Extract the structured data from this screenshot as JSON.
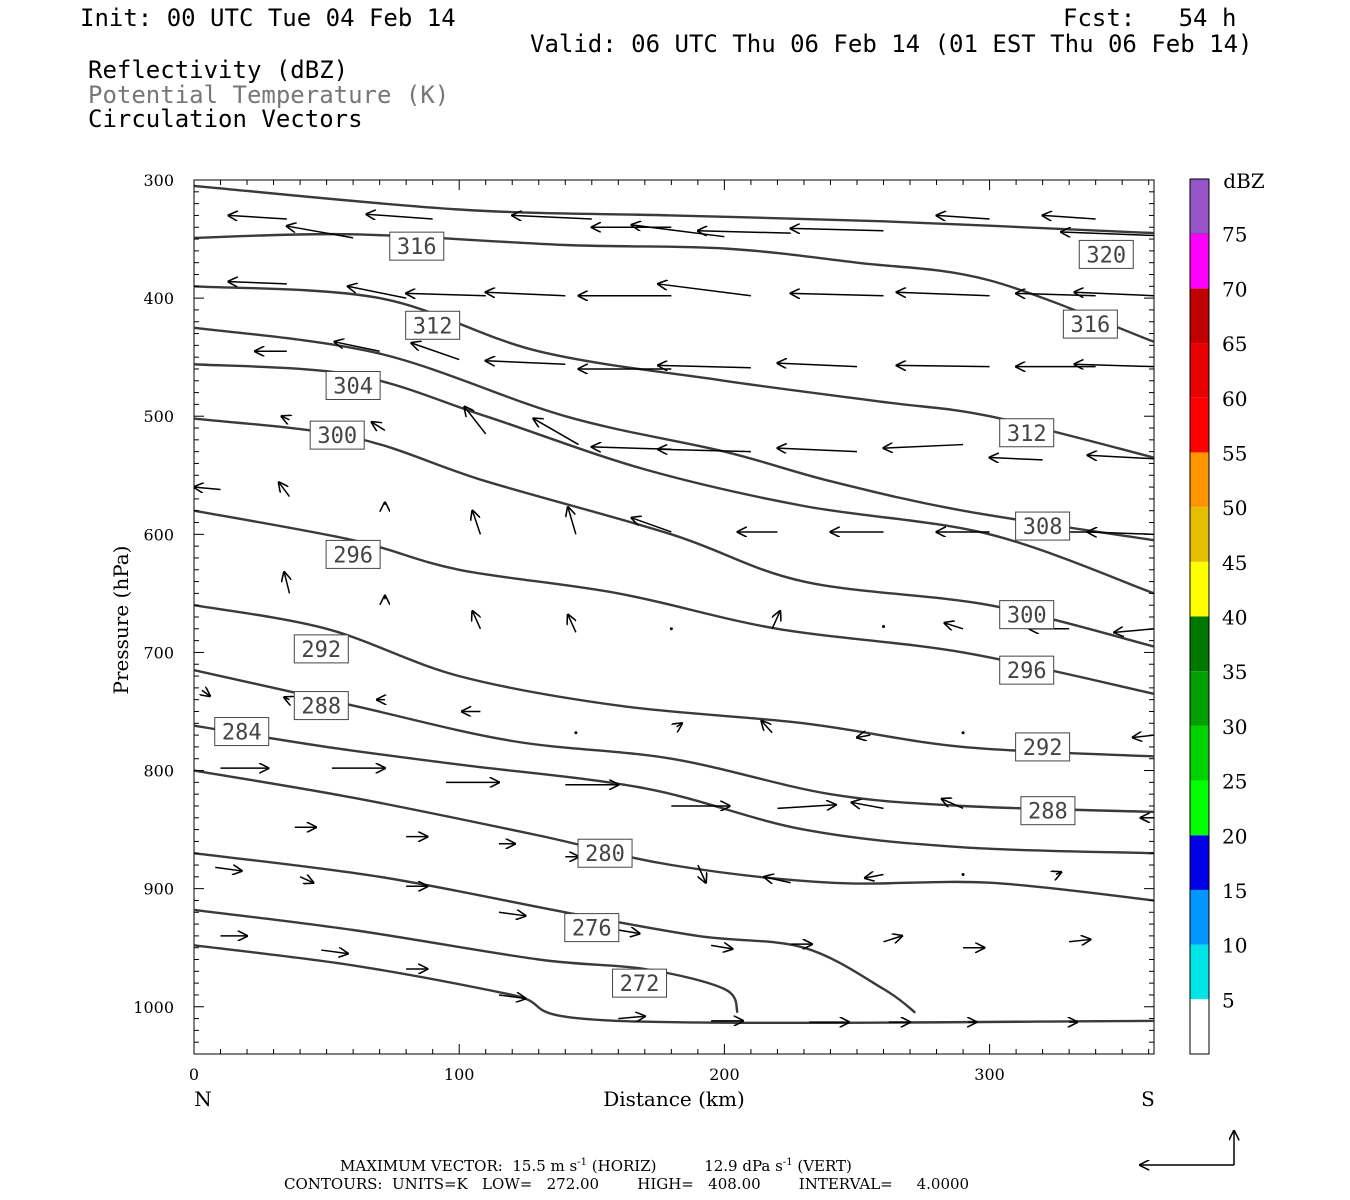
{
  "header": {
    "init": "Init: 00 UTC Tue 04 Feb 14",
    "fcst": "Fcst:   54 h",
    "valid": "Valid: 06 UTC Thu 06 Feb 14 (01 EST Thu 06 Feb 14)",
    "field1": "Reflectivity (dBZ)",
    "field2": "Potential Temperature (K)",
    "field3": "Circulation Vectors"
  },
  "chart_data": {
    "type": "cross-section",
    "xlabel": "Distance (km)",
    "ylabel": "Pressure (hPa)",
    "xlim": [
      0,
      362
    ],
    "ylim": [
      300,
      1040
    ],
    "x_ticks": [
      0,
      100,
      200,
      300
    ],
    "y_ticks": [
      300,
      400,
      500,
      600,
      700,
      800,
      900,
      1000
    ],
    "left_end_label": "N",
    "right_end_label": "S",
    "contours": [
      {
        "level": "320",
        "points": [
          [
            0,
            305
          ],
          [
            100,
            325
          ],
          [
            180,
            330
          ],
          [
            260,
            335
          ],
          [
            362,
            345
          ]
        ],
        "labels": [
          [
            344,
            363
          ]
        ]
      },
      {
        "level": "316",
        "points": [
          [
            0,
            349
          ],
          [
            60,
            346
          ],
          [
            140,
            355
          ],
          [
            200,
            358
          ],
          [
            250,
            370
          ],
          [
            300,
            385
          ],
          [
            362,
            437
          ]
        ],
        "labels": [
          [
            84,
            356
          ],
          [
            338,
            422
          ]
        ]
      },
      {
        "level": "312",
        "points": [
          [
            0,
            390
          ],
          [
            70,
            400
          ],
          [
            130,
            445
          ],
          [
            200,
            470
          ],
          [
            260,
            488
          ],
          [
            300,
            500
          ],
          [
            362,
            535
          ]
        ],
        "labels": [
          [
            90,
            423
          ],
          [
            314,
            514
          ]
        ]
      },
      {
        "level": "308",
        "points": [
          [
            0,
            425
          ],
          [
            70,
            447
          ],
          [
            140,
            500
          ],
          [
            200,
            530
          ],
          [
            240,
            555
          ],
          [
            290,
            580
          ],
          [
            362,
            605
          ]
        ],
        "labels": [
          [
            320,
            593
          ]
        ]
      },
      {
        "level": "304",
        "points": [
          [
            0,
            456
          ],
          [
            60,
            465
          ],
          [
            110,
            500
          ],
          [
            170,
            545
          ],
          [
            230,
            576
          ],
          [
            300,
            600
          ],
          [
            362,
            650
          ]
        ],
        "labels": [
          [
            60,
            474
          ]
        ]
      },
      {
        "level": "300",
        "points": [
          [
            0,
            502
          ],
          [
            60,
            518
          ],
          [
            110,
            555
          ],
          [
            180,
            600
          ],
          [
            230,
            640
          ],
          [
            300,
            660
          ],
          [
            362,
            695
          ]
        ],
        "labels": [
          [
            54,
            516
          ],
          [
            314,
            668
          ]
        ]
      },
      {
        "level": "296",
        "points": [
          [
            0,
            580
          ],
          [
            60,
            605
          ],
          [
            100,
            630
          ],
          [
            160,
            650
          ],
          [
            220,
            680
          ],
          [
            290,
            700
          ],
          [
            362,
            735
          ]
        ],
        "labels": [
          [
            60,
            617
          ],
          [
            314,
            715
          ]
        ]
      },
      {
        "level": "292",
        "points": [
          [
            0,
            660
          ],
          [
            50,
            680
          ],
          [
            100,
            720
          ],
          [
            160,
            745
          ],
          [
            230,
            760
          ],
          [
            290,
            780
          ],
          [
            362,
            788
          ]
        ],
        "labels": [
          [
            48,
            697
          ],
          [
            320,
            780
          ]
        ]
      },
      {
        "level": "288",
        "points": [
          [
            0,
            715
          ],
          [
            60,
            745
          ],
          [
            120,
            775
          ],
          [
            180,
            790
          ],
          [
            240,
            820
          ],
          [
            290,
            830
          ],
          [
            362,
            835
          ]
        ],
        "labels": [
          [
            48,
            745
          ],
          [
            322,
            834
          ]
        ]
      },
      {
        "level": "284",
        "points": [
          [
            0,
            762
          ],
          [
            50,
            780
          ],
          [
            100,
            795
          ],
          [
            170,
            815
          ],
          [
            230,
            850
          ],
          [
            290,
            865
          ],
          [
            362,
            870
          ]
        ],
        "labels": [
          [
            18,
            767
          ]
        ]
      },
      {
        "level": "280",
        "points": [
          [
            0,
            800
          ],
          [
            60,
            823
          ],
          [
            130,
            855
          ],
          [
            180,
            880
          ],
          [
            240,
            895
          ],
          [
            300,
            895
          ],
          [
            362,
            910
          ]
        ],
        "labels": [
          [
            155,
            870
          ]
        ]
      },
      {
        "level": "276",
        "points": [
          [
            0,
            870
          ],
          [
            70,
            890
          ],
          [
            140,
            920
          ],
          [
            190,
            940
          ],
          [
            230,
            950
          ],
          [
            260,
            985
          ],
          [
            272,
            1005
          ]
        ],
        "labels": [
          [
            150,
            933
          ]
        ]
      },
      {
        "level": "272",
        "points": [
          [
            0,
            918
          ],
          [
            60,
            935
          ],
          [
            130,
            960
          ],
          [
            170,
            968
          ],
          [
            200,
            985
          ],
          [
            205,
            1005
          ]
        ],
        "labels": [
          [
            168,
            980
          ]
        ]
      },
      {
        "level": "",
        "points": [
          [
            0,
            948
          ],
          [
            60,
            965
          ],
          [
            120,
            990
          ],
          [
            160,
            1012
          ],
          [
            362,
            1012
          ]
        ],
        "labels": []
      }
    ],
    "vectors": [
      [
        35,
        333,
        -22,
        -3
      ],
      [
        90,
        333,
        -25,
        -4
      ],
      [
        150,
        333,
        -30,
        -3
      ],
      [
        180,
        340,
        -30,
        0
      ],
      [
        300,
        333,
        -20,
        -3
      ],
      [
        340,
        333,
        -20,
        -3
      ],
      [
        60,
        349,
        -25,
        -10
      ],
      [
        200,
        348,
        -35,
        -10
      ],
      [
        225,
        345,
        -35,
        -2
      ],
      [
        260,
        343,
        -35,
        -2
      ],
      [
        362,
        347,
        -35,
        -3
      ],
      [
        35,
        388,
        -22,
        -2
      ],
      [
        80,
        400,
        -22,
        -10
      ],
      [
        110,
        398,
        -30,
        -2
      ],
      [
        140,
        398,
        -30,
        -3
      ],
      [
        180,
        398,
        -35,
        0
      ],
      [
        210,
        398,
        -35,
        -10
      ],
      [
        260,
        398,
        -35,
        -2
      ],
      [
        300,
        398,
        -35,
        -3
      ],
      [
        340,
        398,
        -30,
        -2
      ],
      [
        362,
        398,
        -30,
        -3
      ],
      [
        35,
        445,
        -12,
        0
      ],
      [
        70,
        445,
        -17,
        -8
      ],
      [
        100,
        452,
        -18,
        -14
      ],
      [
        140,
        456,
        -30,
        -3
      ],
      [
        180,
        460,
        -35,
        0
      ],
      [
        210,
        459,
        -35,
        -2
      ],
      [
        250,
        458,
        -30,
        -3
      ],
      [
        300,
        458,
        -35,
        -1
      ],
      [
        340,
        458,
        -30,
        0
      ],
      [
        362,
        458,
        -30,
        -2
      ],
      [
        36,
        503,
        -3,
        -3
      ],
      [
        72,
        512,
        -5,
        -7
      ],
      [
        110,
        515,
        -8,
        -23
      ],
      [
        145,
        524,
        -17,
        -22
      ],
      [
        180,
        528,
        -30,
        -2
      ],
      [
        210,
        530,
        -35,
        -2
      ],
      [
        250,
        530,
        -30,
        -3
      ],
      [
        290,
        524,
        -30,
        3
      ],
      [
        320,
        537,
        -20,
        -2
      ],
      [
        362,
        536,
        -25,
        -3
      ],
      [
        10,
        562,
        -10,
        -2
      ],
      [
        36,
        568,
        -4,
        -12
      ],
      [
        72,
        575,
        0,
        -2
      ],
      [
        108,
        600,
        -3,
        -20
      ],
      [
        144,
        600,
        -3,
        -23
      ],
      [
        180,
        598,
        -15,
        -12
      ],
      [
        220,
        598,
        -15,
        0
      ],
      [
        260,
        598,
        -20,
        0
      ],
      [
        300,
        598,
        -20,
        0
      ],
      [
        340,
        598,
        -20,
        0
      ],
      [
        362,
        600,
        -25,
        -2
      ],
      [
        36,
        650,
        -2,
        -18
      ],
      [
        72,
        655,
        0,
        -3
      ],
      [
        108,
        680,
        -3,
        -15
      ],
      [
        144,
        683,
        -3,
        -15
      ],
      [
        180,
        680,
        0,
        0
      ],
      [
        218,
        680,
        3,
        -15
      ],
      [
        260,
        678,
        0,
        0
      ],
      [
        290,
        680,
        -7,
        -5
      ],
      [
        330,
        680,
        -15,
        0
      ],
      [
        362,
        680,
        -15,
        3
      ],
      [
        3,
        732,
        3,
        5
      ],
      [
        36,
        740,
        -2,
        -2
      ],
      [
        72,
        740,
        -3,
        0
      ],
      [
        108,
        750,
        -7,
        0
      ],
      [
        144,
        768,
        0,
        0
      ],
      [
        182,
        763,
        2,
        -3
      ],
      [
        218,
        768,
        -4,
        -10
      ],
      [
        255,
        770,
        -5,
        2
      ],
      [
        290,
        768,
        0,
        0
      ],
      [
        330,
        780,
        -5,
        10
      ],
      [
        362,
        770,
        -8,
        2
      ],
      [
        10,
        798,
        18,
        0
      ],
      [
        52,
        798,
        20,
        0
      ],
      [
        95,
        810,
        20,
        0
      ],
      [
        140,
        812,
        20,
        0
      ],
      [
        180,
        830,
        22,
        0
      ],
      [
        220,
        832,
        22,
        -3
      ],
      [
        260,
        832,
        -12,
        -5
      ],
      [
        290,
        832,
        -8,
        -8
      ],
      [
        330,
        835,
        -8,
        10
      ],
      [
        362,
        840,
        -5,
        0
      ],
      [
        38,
        848,
        8,
        0
      ],
      [
        80,
        856,
        8,
        0
      ],
      [
        115,
        862,
        6,
        0
      ],
      [
        140,
        873,
        5,
        0
      ],
      [
        190,
        880,
        3,
        15
      ],
      [
        225,
        895,
        -10,
        -5
      ],
      [
        260,
        888,
        -7,
        3
      ],
      [
        290,
        888,
        0,
        0
      ],
      [
        325,
        888,
        2,
        -2
      ],
      [
        8,
        882,
        10,
        3
      ],
      [
        40,
        890,
        5,
        5
      ],
      [
        80,
        898,
        8,
        0
      ],
      [
        115,
        920,
        10,
        3
      ],
      [
        160,
        935,
        8,
        3
      ],
      [
        195,
        948,
        8,
        3
      ],
      [
        225,
        947,
        8,
        0
      ],
      [
        260,
        945,
        7,
        -5
      ],
      [
        290,
        950,
        8,
        0
      ],
      [
        330,
        945,
        8,
        -2
      ],
      [
        10,
        940,
        10,
        0
      ],
      [
        48,
        952,
        10,
        3
      ],
      [
        80,
        968,
        8,
        0
      ],
      [
        115,
        990,
        10,
        3
      ],
      [
        160,
        1010,
        10,
        -2
      ],
      [
        195,
        1012,
        12,
        0
      ],
      [
        232,
        1013,
        15,
        0
      ],
      [
        262,
        1013,
        8,
        0
      ],
      [
        292,
        1013,
        3,
        0
      ],
      [
        330,
        1013,
        3,
        0
      ]
    ],
    "colorbar": {
      "title": "dBZ",
      "levels": [
        "5",
        "10",
        "15",
        "20",
        "25",
        "30",
        "35",
        "40",
        "45",
        "50",
        "55",
        "60",
        "65",
        "70",
        "75"
      ],
      "colors": [
        "#00e6e6",
        "#0096ff",
        "#0000e6",
        "#00ff00",
        "#00d200",
        "#00a000",
        "#007800",
        "#ffff00",
        "#e6c000",
        "#ff9600",
        "#ff0000",
        "#e60000",
        "#c00000",
        "#ff00ff",
        "#9655c8"
      ]
    }
  },
  "footer": {
    "max_vector_label": "MAXIMUM VECTOR:",
    "horiz_value": "15.5 m s",
    "horiz_unit": "(HORIZ)",
    "vert_value": "12.9 dPa s",
    "vert_unit": "(VERT)",
    "exponent": "-1",
    "contours_line": "CONTOURS:  UNITS=K   LOW=   272.00        HIGH=   408.00        INTERVAL=     4.0000"
  }
}
